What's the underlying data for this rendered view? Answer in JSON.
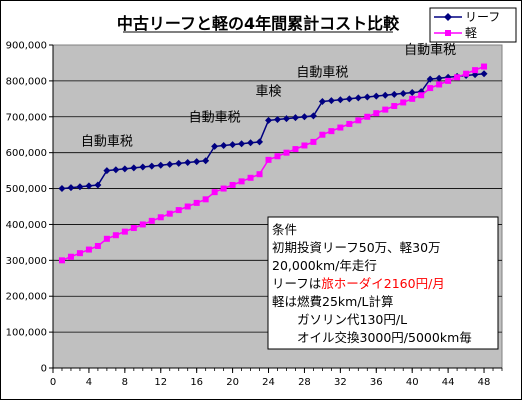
{
  "chart_data": {
    "type": "line",
    "title": "中古リーフと軽の4年間累計コスト比較",
    "xlabel": "",
    "ylabel": "",
    "xlim": [
      0,
      50
    ],
    "ylim": [
      0,
      900000
    ],
    "x_ticks": [
      0,
      4,
      8,
      12,
      16,
      20,
      24,
      28,
      32,
      36,
      40,
      44,
      48
    ],
    "y_ticks": [
      0,
      100000,
      200000,
      300000,
      400000,
      500000,
      600000,
      700000,
      800000,
      900000
    ],
    "y_tick_labels": [
      "0",
      "100,000",
      "200,000",
      "300,000",
      "400,000",
      "500,000",
      "600,000",
      "700,000",
      "800,000",
      "900,000"
    ],
    "grid": "horizontal",
    "legend_position": "top-right",
    "series": [
      {
        "name": "リーフ",
        "color": "#000080",
        "marker": "diamond",
        "x": [
          1,
          2,
          3,
          4,
          5,
          6,
          7,
          8,
          9,
          10,
          11,
          12,
          13,
          14,
          15,
          16,
          17,
          18,
          19,
          20,
          21,
          22,
          23,
          24,
          25,
          26,
          27,
          28,
          29,
          30,
          31,
          32,
          33,
          34,
          35,
          36,
          37,
          38,
          39,
          40,
          41,
          42,
          43,
          44,
          45,
          46,
          47,
          48
        ],
        "values": [
          500000,
          502500,
          505000,
          507500,
          510000,
          550000,
          552500,
          555000,
          557500,
          560000,
          562500,
          565000,
          567500,
          570000,
          572500,
          575000,
          577500,
          617500,
          620000,
          622500,
          625000,
          627500,
          630000,
          690000,
          692500,
          695000,
          697500,
          700000,
          702500,
          742500,
          745000,
          747500,
          750000,
          752500,
          755000,
          757500,
          760000,
          762500,
          765000,
          767500,
          770000,
          805000,
          807500,
          810000,
          812500,
          815000,
          817500,
          820000
        ]
      },
      {
        "name": "軽",
        "color": "#ff00ff",
        "marker": "square",
        "x": [
          1,
          2,
          3,
          4,
          5,
          6,
          7,
          8,
          9,
          10,
          11,
          12,
          13,
          14,
          15,
          16,
          17,
          18,
          19,
          20,
          21,
          22,
          23,
          24,
          25,
          26,
          27,
          28,
          29,
          30,
          31,
          32,
          33,
          34,
          35,
          36,
          37,
          38,
          39,
          40,
          41,
          42,
          43,
          44,
          45,
          46,
          47,
          48
        ],
        "values": [
          300000,
          310000,
          320000,
          330000,
          340000,
          360000,
          370000,
          380000,
          390000,
          400000,
          410000,
          420000,
          430000,
          440000,
          450000,
          460000,
          470000,
          490000,
          500000,
          510000,
          520000,
          530000,
          540000,
          580000,
          590000,
          600000,
          610000,
          620000,
          630000,
          650000,
          660000,
          670000,
          680000,
          690000,
          700000,
          710000,
          720000,
          730000,
          740000,
          750000,
          760000,
          780000,
          790000,
          800000,
          810000,
          820000,
          830000,
          840000
        ]
      }
    ],
    "annotations": [
      {
        "text": "自動車税",
        "x": 6
      },
      {
        "text": "自動車税",
        "x": 18
      },
      {
        "text": "車検",
        "x": 24
      },
      {
        "text": "自動車税",
        "x": 30
      },
      {
        "text": "自動車税",
        "x": 42
      }
    ],
    "conditions": {
      "heading": "条件",
      "lines": [
        {
          "before": "初期投資リーフ50万、軽30万",
          "highlight": "",
          "after": ""
        },
        {
          "before": "20,000km/年走行",
          "highlight": "",
          "after": ""
        },
        {
          "before": "リーフは",
          "highlight": "旅ホーダイ2160円/月",
          "after": ""
        },
        {
          "before": "軽は燃費25km/L計算",
          "highlight": "",
          "after": ""
        },
        {
          "before": "ガソリン代130円/L",
          "highlight": "",
          "after": ""
        },
        {
          "before": "オイル交換3000円/5000km毎",
          "highlight": "",
          "after": ""
        }
      ],
      "highlight_color": "#ff0000"
    }
  }
}
